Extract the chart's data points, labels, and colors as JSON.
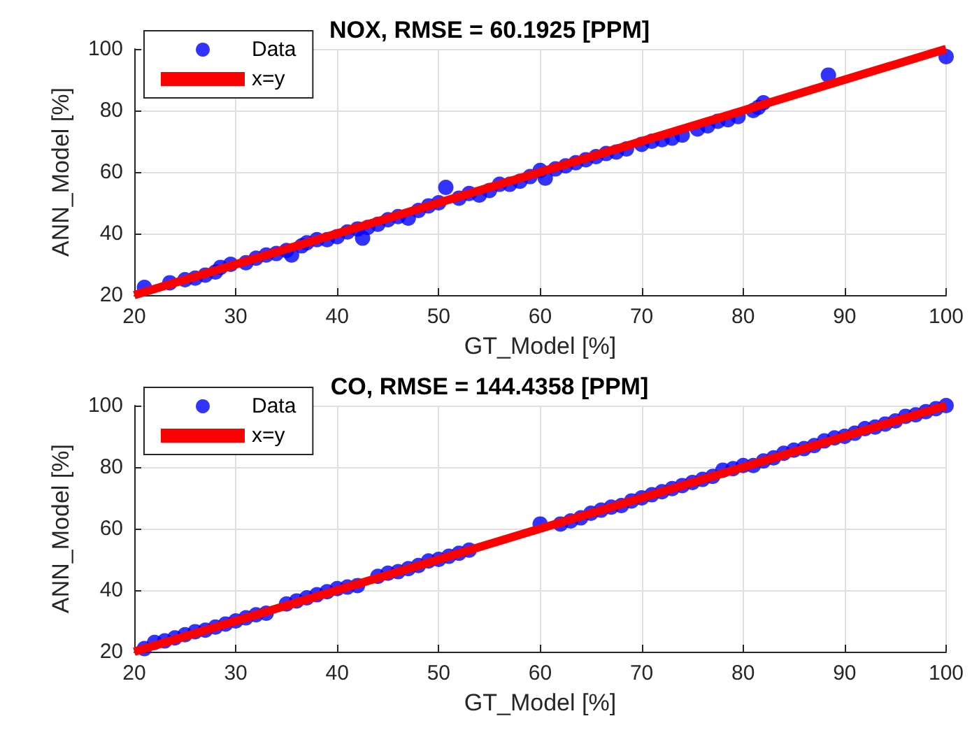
{
  "chart_data": [
    {
      "type": "scatter",
      "title": "NOX, RMSE = 60.1925 [PPM]",
      "xlabel": "GT_Model [%]",
      "ylabel": "ANN_Model [%]",
      "xlim": [
        20,
        100
      ],
      "xticks": [
        20,
        30,
        40,
        50,
        60,
        70,
        80,
        90,
        100
      ],
      "ylim": [
        20,
        100
      ],
      "yticks": [
        20,
        40,
        60,
        80,
        100
      ],
      "grid": true,
      "legend": "top left",
      "series": [
        {
          "name": "Data",
          "marker": "circle",
          "color": "#0000ff",
          "x": [
            21,
            23.5,
            25,
            26,
            27,
            28,
            28.5,
            29.5,
            31,
            32,
            33,
            34,
            35,
            35.5,
            36.5,
            37,
            38,
            39,
            40,
            41,
            42,
            42.5,
            43,
            44,
            45,
            46,
            47,
            48,
            49,
            50,
            50.7,
            52,
            53,
            54,
            55,
            56,
            57,
            58,
            59,
            60,
            60.5,
            61.5,
            62.5,
            63.5,
            64.5,
            65.5,
            66.5,
            67.5,
            68.5,
            70,
            71,
            72,
            73,
            74,
            75.5,
            76.5,
            77.5,
            78.5,
            79.5,
            81,
            81.5,
            82,
            88.4,
            100
          ],
          "values": [
            22.5,
            24,
            25,
            25.5,
            26.5,
            27.5,
            29,
            30,
            30.5,
            32,
            33,
            33.5,
            34.5,
            33,
            36,
            37,
            38,
            38,
            39,
            40.5,
            41.5,
            38.5,
            42,
            43,
            44.5,
            45.5,
            45,
            47.5,
            49,
            50,
            55,
            51.5,
            53,
            52.5,
            54,
            56,
            56,
            57,
            58.5,
            60.5,
            58,
            61,
            62,
            63,
            64,
            65,
            66,
            66.5,
            67.5,
            69,
            70,
            70.5,
            71,
            72,
            74,
            75,
            76.5,
            77,
            78,
            80,
            81,
            82.5,
            91.5,
            97.5
          ]
        },
        {
          "name": "x=y",
          "type": "line",
          "marker": "none",
          "color": "#ff0000",
          "x": [
            20,
            100
          ],
          "values": [
            20,
            100
          ]
        }
      ]
    },
    {
      "type": "scatter",
      "title": "CO, RMSE = 144.4358 [PPM]",
      "xlabel": "GT_Model [%]",
      "ylabel": "ANN_Model [%]",
      "xlim": [
        20,
        100
      ],
      "xticks": [
        20,
        30,
        40,
        50,
        60,
        70,
        80,
        90,
        100
      ],
      "ylim": [
        20,
        100
      ],
      "yticks": [
        20,
        40,
        60,
        80,
        100
      ],
      "grid": true,
      "legend": "top left",
      "series": [
        {
          "name": "Data",
          "marker": "circle",
          "color": "#0000ff",
          "x": [
            21,
            22,
            23,
            24,
            25,
            26,
            27,
            28,
            29,
            30,
            31,
            32,
            33,
            35,
            36,
            37,
            38,
            39,
            40,
            41,
            42,
            44,
            45,
            46,
            47,
            48,
            49,
            50,
            51,
            52,
            53,
            60,
            62,
            63,
            64,
            65,
            66,
            67,
            68,
            69,
            70,
            71,
            72,
            73,
            74,
            75,
            76,
            77,
            78,
            79,
            80,
            81,
            82,
            83,
            84,
            85,
            86,
            87,
            88,
            89,
            90,
            91,
            92,
            93,
            94,
            95,
            96,
            97,
            98,
            99,
            100
          ],
          "values": [
            21,
            23,
            23.5,
            24.5,
            25.5,
            26.5,
            27,
            28,
            29,
            30,
            31,
            32,
            32.5,
            35.5,
            36.5,
            37.5,
            38.5,
            39.5,
            40.5,
            41,
            41.5,
            44.5,
            45.5,
            46,
            47,
            48,
            49.5,
            50,
            51,
            52,
            53,
            61.5,
            61.5,
            62.5,
            63.5,
            65,
            66,
            67,
            67.5,
            69,
            70,
            71,
            72,
            73,
            74,
            75,
            76,
            77,
            79,
            79.5,
            80.5,
            80.5,
            82,
            83,
            84.5,
            85.5,
            86,
            87,
            88.5,
            89.5,
            90,
            91,
            92.5,
            93,
            94,
            95,
            96.5,
            97,
            98,
            99,
            100
          ]
        },
        {
          "name": "x=y",
          "type": "line",
          "marker": "none",
          "color": "#ff0000",
          "x": [
            20,
            100
          ],
          "values": [
            20,
            100
          ]
        }
      ]
    }
  ]
}
